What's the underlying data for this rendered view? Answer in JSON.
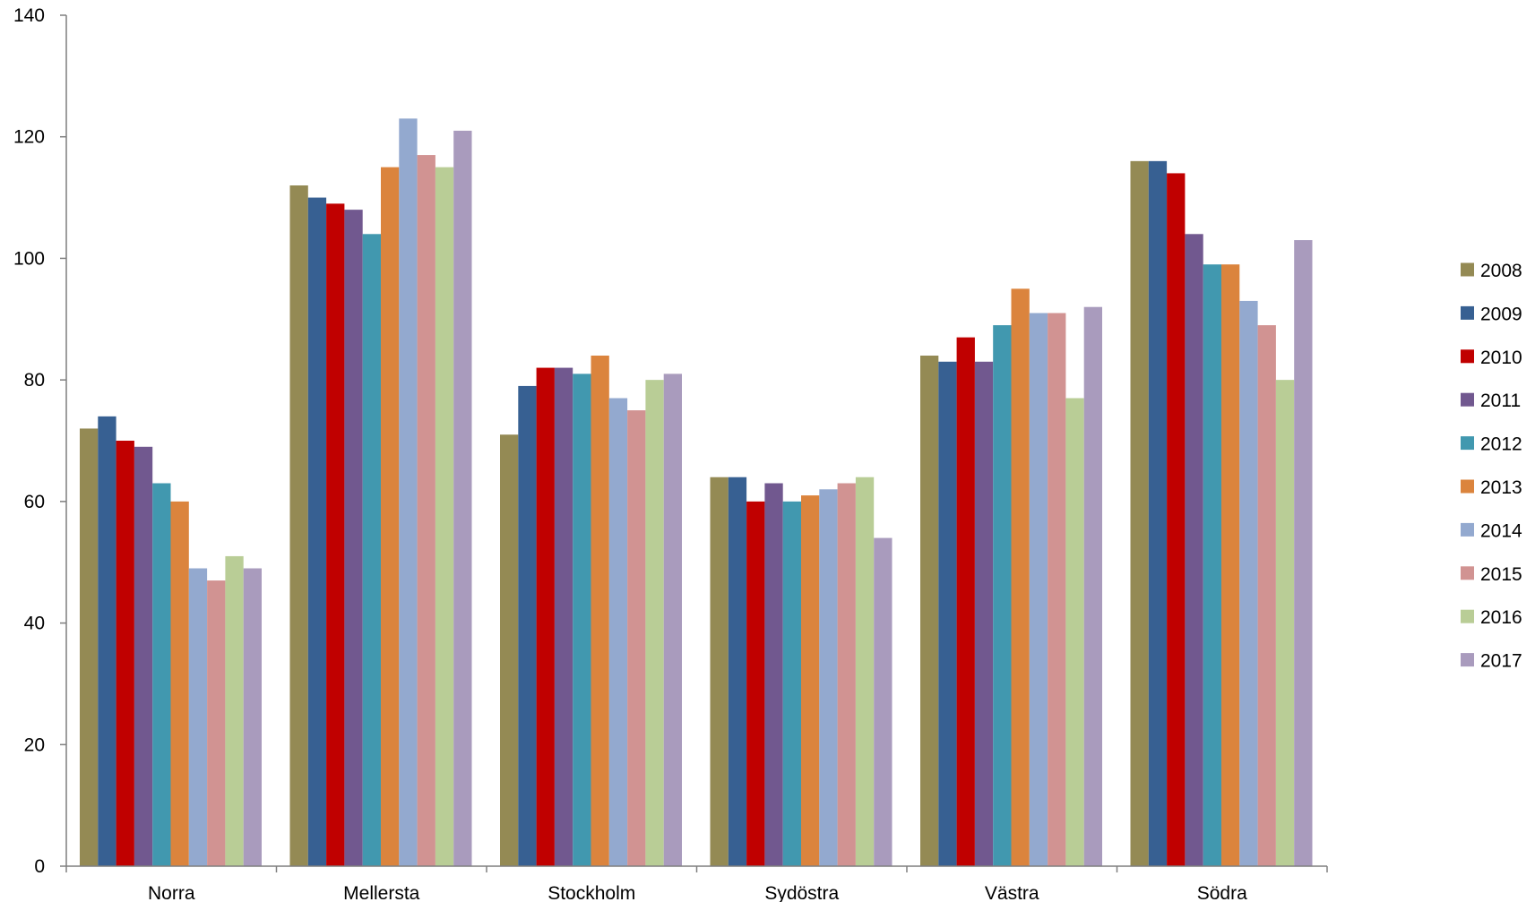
{
  "chart_data": {
    "type": "bar",
    "categories": [
      "Norra",
      "Mellersta",
      "Stockholm",
      "Sydöstra",
      "Västra",
      "Södra"
    ],
    "series": [
      {
        "name": "2008",
        "color": "#948A54",
        "values": [
          72,
          112,
          71,
          64,
          84,
          116
        ]
      },
      {
        "name": "2009",
        "color": "#376092",
        "values": [
          74,
          110,
          79,
          64,
          83,
          116
        ]
      },
      {
        "name": "2010",
        "color": "#C00000",
        "values": [
          70,
          109,
          82,
          60,
          87,
          114
        ]
      },
      {
        "name": "2011",
        "color": "#71588F",
        "values": [
          69,
          108,
          82,
          63,
          83,
          104
        ]
      },
      {
        "name": "2012",
        "color": "#4198AF",
        "values": [
          63,
          104,
          81,
          60,
          89,
          99
        ]
      },
      {
        "name": "2013",
        "color": "#DB843D",
        "values": [
          60,
          115,
          84,
          61,
          95,
          99
        ]
      },
      {
        "name": "2014",
        "color": "#93A9CF",
        "values": [
          49,
          123,
          77,
          62,
          91,
          93
        ]
      },
      {
        "name": "2015",
        "color": "#D19392",
        "values": [
          47,
          117,
          75,
          63,
          91,
          89
        ]
      },
      {
        "name": "2016",
        "color": "#B9CD96",
        "values": [
          51,
          115,
          80,
          64,
          77,
          80
        ]
      },
      {
        "name": "2017",
        "color": "#A99BBD",
        "values": [
          49,
          121,
          81,
          54,
          92,
          103
        ]
      }
    ],
    "ylim": [
      0,
      140
    ],
    "yticks": [
      0,
      20,
      40,
      60,
      80,
      100,
      120,
      140
    ],
    "grid": false,
    "legend_position": "right"
  }
}
